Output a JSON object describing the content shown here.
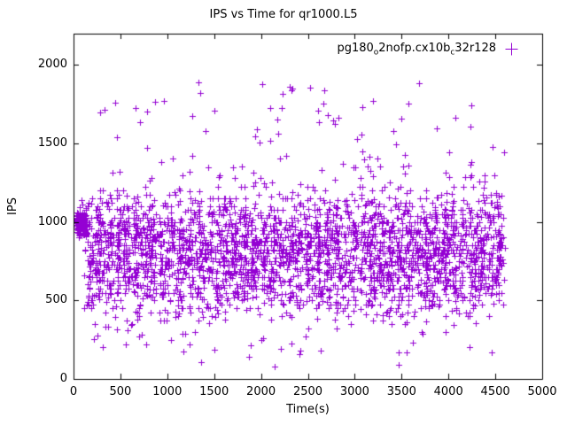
{
  "title": "IPS vs Time for qr1000.L5",
  "axes": {
    "xlabel": "Time(s)",
    "ylabel": "IPS"
  },
  "legend": {
    "label": "pg180_o2nofp.cx10b_c32r128",
    "segments": [
      {
        "text": "pg180"
      },
      {
        "text": "o",
        "sub": true
      },
      {
        "text": "2nofp.cx10b"
      },
      {
        "text": "c",
        "sub": true
      },
      {
        "text": "32r128"
      }
    ],
    "marker": "plus"
  },
  "colors": {
    "marker": "#9400d3",
    "axis": "#000000",
    "background": "#ffffff",
    "text": "#000000"
  },
  "chart_data": {
    "type": "scatter",
    "title": "IPS vs Time for qr1000.L5",
    "xlabel": "Time(s)",
    "ylabel": "IPS",
    "xlim": [
      0,
      5000
    ],
    "ylim": [
      0,
      2200
    ],
    "xticks": [
      0,
      500,
      1000,
      1500,
      2000,
      2500,
      3000,
      3500,
      4000,
      4500,
      5000
    ],
    "yticks": [
      0,
      500,
      1000,
      1500,
      2000
    ],
    "grid": false,
    "legend_position": "top-right-inside",
    "series": [
      {
        "name": "pg180_o2nofp.cx10b_c32r128",
        "color": "#9400d3",
        "marker": "plus",
        "summary": {
          "x_range_observed": [
            30,
            4620
          ],
          "y_range_observed": [
            70,
            1900
          ],
          "dense_band_y": [
            450,
            1150
          ],
          "left_startup_cluster": {
            "x": [
              30,
              140
            ],
            "y": [
              950,
              1070
            ]
          }
        },
        "generator": {
          "seed": 1337,
          "count": 3200,
          "x_stripes": {
            "start": 180,
            "step": 97,
            "num": 46,
            "jitter": 28
          },
          "x_uniform_frac": 0.15,
          "x_uniform_range": [
            150,
            4600
          ],
          "x_clip": [
            25,
            4640
          ],
          "left_cluster": {
            "frac": 0.05,
            "x_range": [
              28,
              140
            ],
            "y_mean": 995,
            "y_sd": 45
          },
          "y_components": [
            {
              "frac": 0.5,
              "mean": 760,
              "sd": 140
            },
            {
              "frac": 0.3,
              "mean": 980,
              "sd": 130
            },
            {
              "frac": 0.12,
              "mean": 560,
              "sd": 90
            },
            {
              "frac": 0.08,
              "uniform": [
                80,
                1900
              ]
            }
          ],
          "y_quant": {
            "frac": 0.5,
            "step": 25
          },
          "y_clip": [
            65,
            2150
          ]
        }
      }
    ]
  }
}
